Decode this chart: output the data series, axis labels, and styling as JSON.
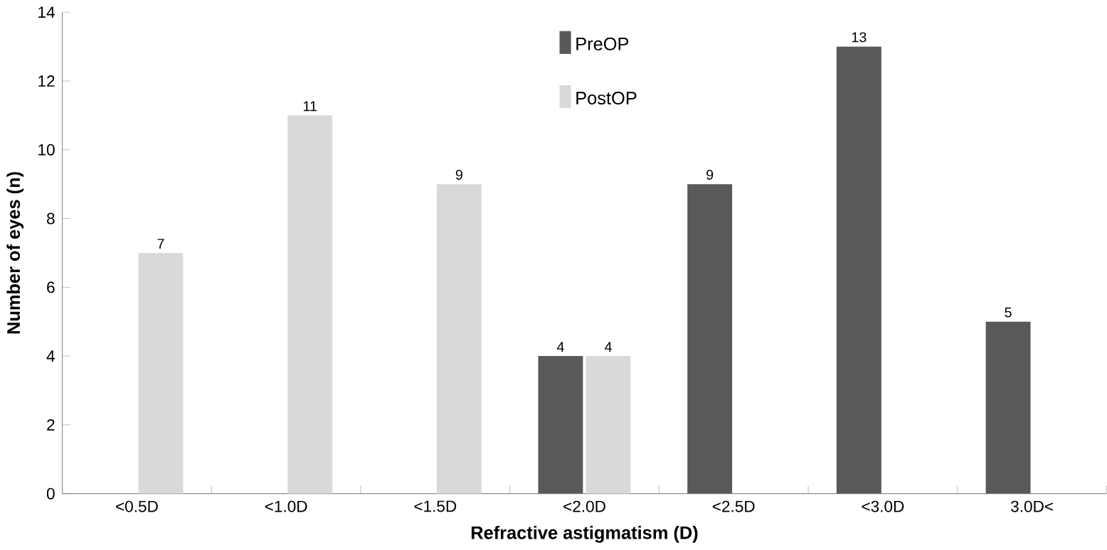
{
  "chart_data": {
    "type": "bar",
    "xlabel": "Refractive astigmatism (D)",
    "ylabel": "Number of eyes (n)",
    "categories": [
      "<0.5D",
      "<1.0D",
      "<1.5D",
      "<2.0D",
      "<2.5D",
      "<3.0D",
      "3.0D<"
    ],
    "series": [
      {
        "name": "PreOP",
        "color": "#595959",
        "values": [
          null,
          null,
          null,
          4,
          9,
          13,
          5
        ]
      },
      {
        "name": "PostOP",
        "color": "#d9d9d9",
        "values": [
          7,
          11,
          9,
          4,
          null,
          null,
          null
        ]
      }
    ],
    "ylim": [
      0,
      14
    ],
    "yticks": [
      0,
      2,
      4,
      6,
      8,
      10,
      12,
      14
    ],
    "data_labels": true,
    "legend": "top"
  }
}
